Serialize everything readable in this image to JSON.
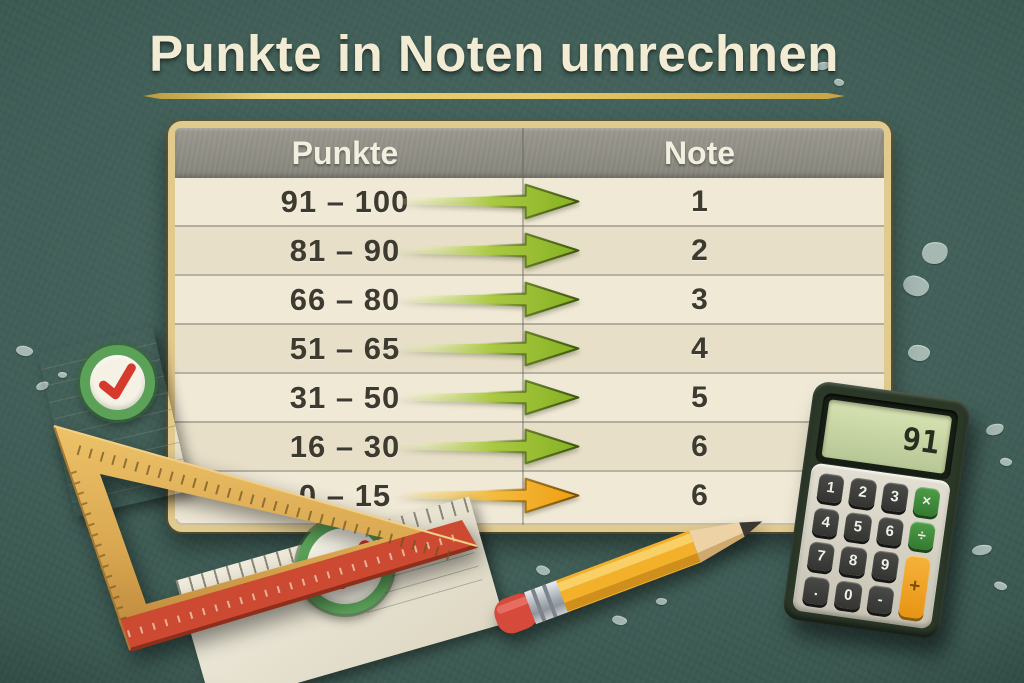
{
  "title": "Punkte in Noten umrechnen",
  "table": {
    "punkte_header": "Punkte",
    "note_header": "Note",
    "rows": [
      {
        "points": "91 – 100",
        "note": "1",
        "arrow": "green"
      },
      {
        "points": "81 – 90",
        "note": "2",
        "arrow": "green"
      },
      {
        "points": "66 – 80",
        "note": "3",
        "arrow": "green"
      },
      {
        "points": "51 – 65",
        "note": "4",
        "arrow": "green"
      },
      {
        "points": "31 – 50",
        "note": "5",
        "arrow": "green"
      },
      {
        "points": "16 – 30",
        "note": "6",
        "arrow": "green"
      },
      {
        "points": "0 – 15",
        "note": "6",
        "arrow": "orange"
      }
    ]
  },
  "calculator": {
    "display": "91",
    "keys": [
      {
        "label": "1",
        "type": "dark",
        "name": "key-1"
      },
      {
        "label": "2",
        "type": "dark",
        "name": "key-2"
      },
      {
        "label": "3",
        "type": "dark",
        "name": "key-3"
      },
      {
        "label": "×",
        "type": "green",
        "name": "multiply-key"
      },
      {
        "label": "4",
        "type": "dark",
        "name": "key-4"
      },
      {
        "label": "5",
        "type": "dark",
        "name": "key-5"
      },
      {
        "label": "6",
        "type": "dark",
        "name": "key-6"
      },
      {
        "label": "÷",
        "type": "green",
        "name": "divide-key"
      },
      {
        "label": "7",
        "type": "dark",
        "name": "key-7"
      },
      {
        "label": "8",
        "type": "dark",
        "name": "key-8"
      },
      {
        "label": "9",
        "type": "dark",
        "name": "key-9"
      },
      {
        "label": "+",
        "type": "orange",
        "tall": true,
        "name": "plus-key"
      },
      {
        "label": ".",
        "type": "dark",
        "name": "decimal-key"
      },
      {
        "label": "0",
        "type": "dark",
        "name": "key-0"
      },
      {
        "label": "-",
        "type": "dark",
        "name": "minus-key"
      }
    ]
  },
  "icons": {
    "check-icon": "✓",
    "arrow-right-icon": "→"
  },
  "colors": {
    "background_teal": "#3d5a53",
    "title_cream": "#f3ecd5",
    "underline_gold": "#e5c766",
    "card_paper": "#f0e9d6",
    "card_border_tan": "#e1ca8e",
    "header_gray": "#8d8c82",
    "row_alt": "#e7dfc8",
    "text_dark": "#3d3a30",
    "arrow_green": "#8cb52c",
    "arrow_orange": "#efa31a",
    "check_red": "#d63a2c",
    "badge_ring_green": "#5ba158",
    "pencil_yellow": "#f2b02b",
    "eraser_red": "#d64a3c",
    "ruler_wood": "#d9a750",
    "ruler_red_edge": "#cc4a31",
    "calc_body_green": "#2b3828",
    "calc_lcd_green": "#c8d6a3"
  },
  "chart_data": {
    "type": "table",
    "title": "Punkte in Noten umrechnen",
    "columns": [
      "Punkte",
      "Note"
    ],
    "rows": [
      [
        "91 – 100",
        "1"
      ],
      [
        "81 – 90",
        "2"
      ],
      [
        "66 – 80",
        "3"
      ],
      [
        "51 – 65",
        "4"
      ],
      [
        "31 – 50",
        "5"
      ],
      [
        "16 – 30",
        "6"
      ],
      [
        "0 – 15",
        "6"
      ]
    ],
    "notes": "Conversion chart from points (Punkte) to German school grades (Note); green arrows map each range to its grade, last range 0–15 highlighted with an orange arrow."
  }
}
